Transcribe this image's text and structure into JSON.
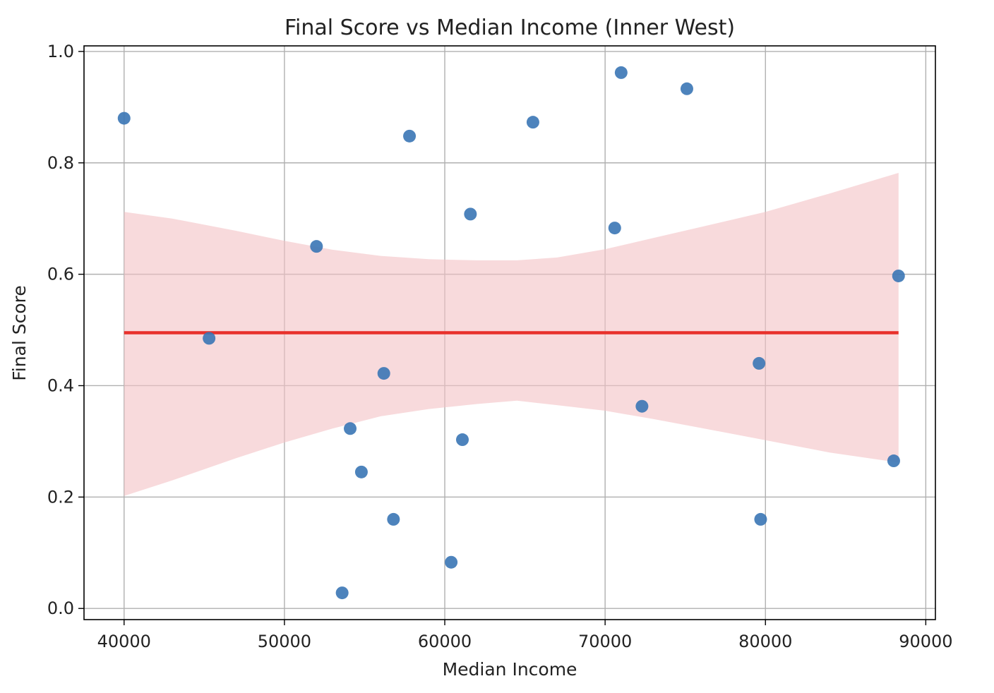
{
  "chart_data": {
    "type": "scatter",
    "title": "Final Score vs Median Income (Inner West)",
    "xlabel": "Median Income",
    "ylabel": "Final Score",
    "xlim": [
      37500,
      90600
    ],
    "ylim": [
      -0.02,
      1.01
    ],
    "xticks": [
      "40000",
      "50000",
      "60000",
      "70000",
      "80000",
      "90000"
    ],
    "xtick_values": [
      40000,
      50000,
      60000,
      70000,
      80000,
      90000
    ],
    "yticks": [
      "0.0",
      "0.2",
      "0.4",
      "0.6",
      "0.8",
      "1.0"
    ],
    "ytick_values": [
      0.0,
      0.2,
      0.4,
      0.6,
      0.8,
      1.0
    ],
    "grid": true,
    "colors": {
      "points": "#3a75b5",
      "regression_line": "#e8302b",
      "confidence_band": "#f4c2c4",
      "grid": "#b0b0b0",
      "axes": "#000000"
    },
    "points": [
      {
        "x": 40000,
        "y": 0.88
      },
      {
        "x": 45300,
        "y": 0.485
      },
      {
        "x": 52000,
        "y": 0.65
      },
      {
        "x": 53600,
        "y": 0.028
      },
      {
        "x": 54100,
        "y": 0.323
      },
      {
        "x": 54800,
        "y": 0.245
      },
      {
        "x": 56200,
        "y": 0.422
      },
      {
        "x": 56800,
        "y": 0.16
      },
      {
        "x": 57800,
        "y": 0.848
      },
      {
        "x": 60400,
        "y": 0.083
      },
      {
        "x": 61100,
        "y": 0.303
      },
      {
        "x": 61600,
        "y": 0.708
      },
      {
        "x": 65500,
        "y": 0.873
      },
      {
        "x": 70600,
        "y": 0.683
      },
      {
        "x": 71000,
        "y": 0.962
      },
      {
        "x": 72300,
        "y": 0.363
      },
      {
        "x": 75100,
        "y": 0.933
      },
      {
        "x": 79600,
        "y": 0.44
      },
      {
        "x": 79700,
        "y": 0.16
      },
      {
        "x": 88000,
        "y": 0.265
      },
      {
        "x": 88300,
        "y": 0.597
      }
    ],
    "regression": {
      "x": [
        40000,
        88300
      ],
      "y": [
        0.495,
        0.495
      ]
    },
    "confidence_band": {
      "x": [
        40000,
        43000,
        47000,
        50000,
        53000,
        56000,
        59000,
        62000,
        64500,
        67000,
        70000,
        73000,
        76000,
        80000,
        84000,
        88300
      ],
      "upper": [
        0.712,
        0.7,
        0.678,
        0.66,
        0.644,
        0.633,
        0.627,
        0.625,
        0.625,
        0.63,
        0.645,
        0.665,
        0.685,
        0.712,
        0.745,
        0.782
      ],
      "lower": [
        0.202,
        0.23,
        0.27,
        0.298,
        0.323,
        0.345,
        0.358,
        0.367,
        0.373,
        0.365,
        0.355,
        0.34,
        0.324,
        0.302,
        0.28,
        0.262
      ]
    }
  }
}
